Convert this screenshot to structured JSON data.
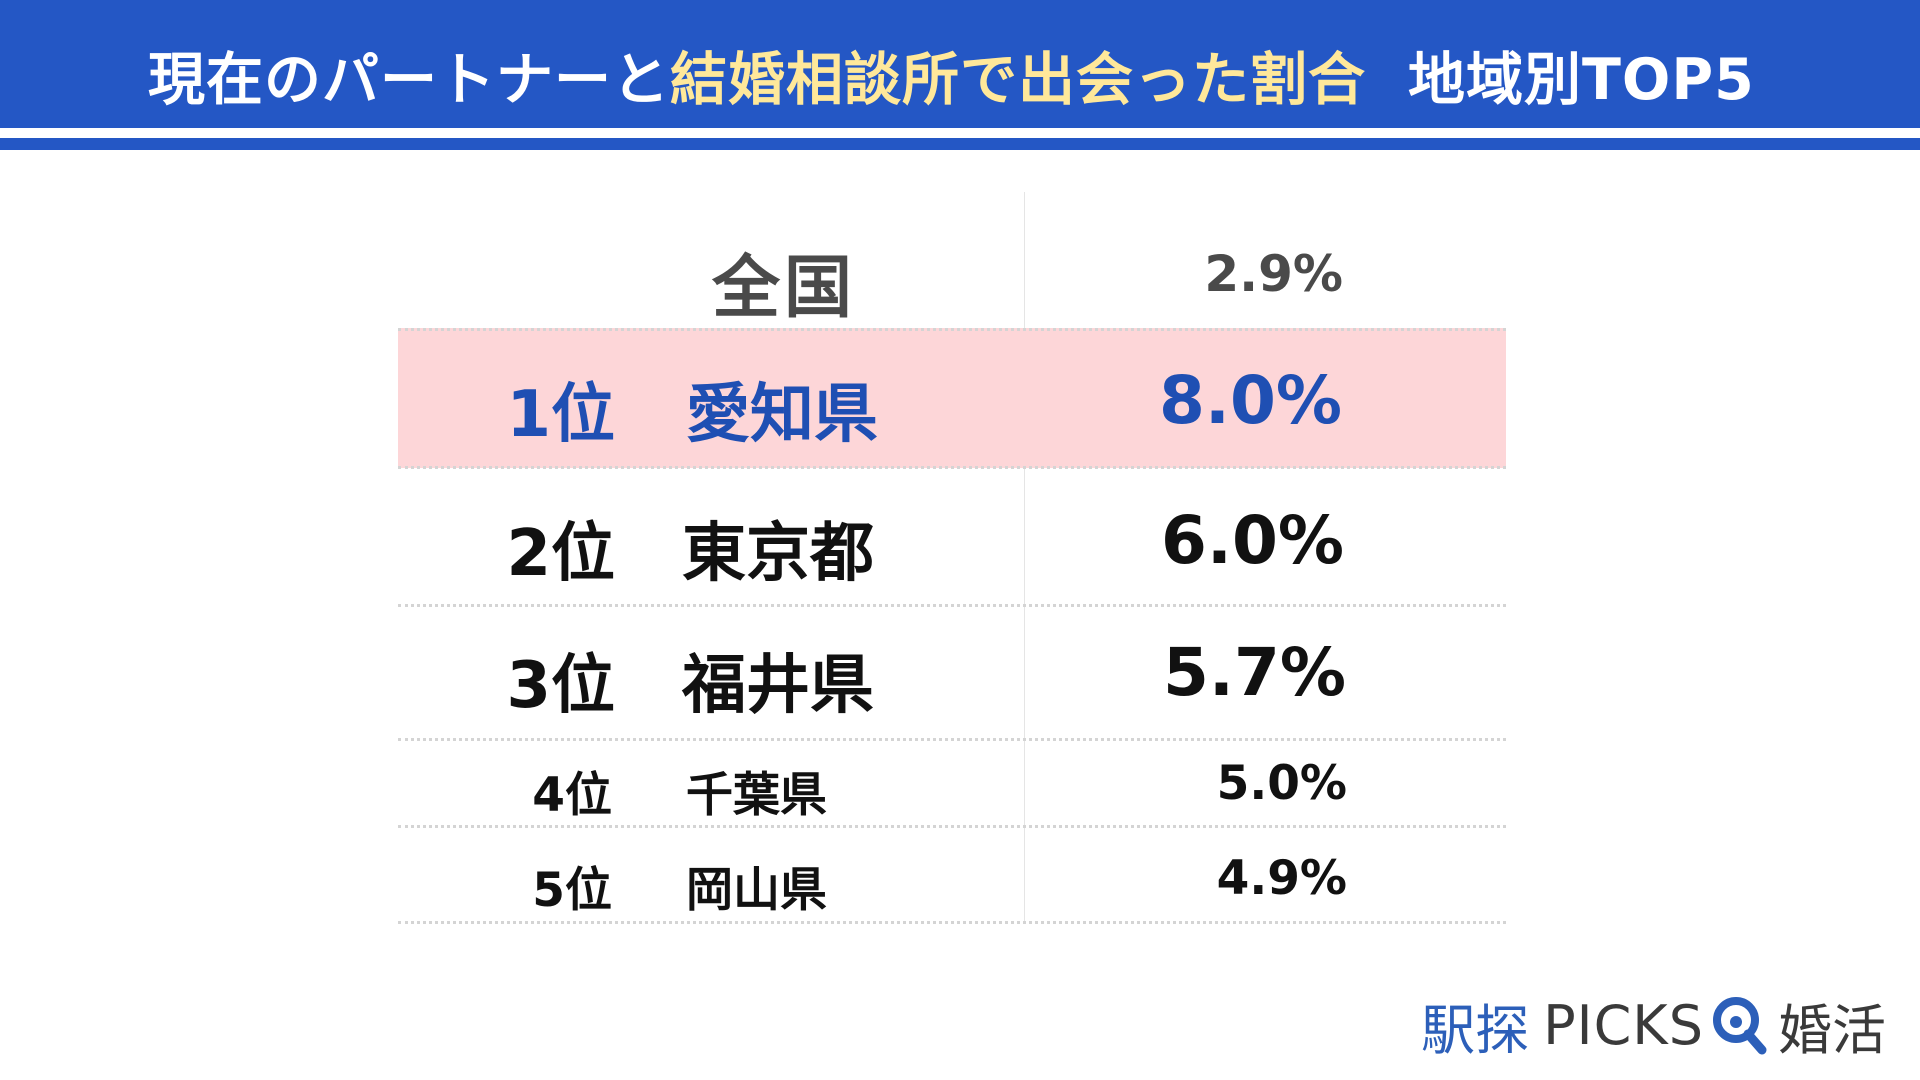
{
  "header": {
    "title_part1": "現在のパートナーと",
    "title_highlight": "結婚相談所で出会った割合",
    "title_part2": "地域別TOP5"
  },
  "colors": {
    "header_blue": "#2457c5",
    "highlight_text": "#ffe89a",
    "first_place_bg": "#fdd6d8",
    "first_place_text": "#1f4fb3"
  },
  "chart_data": {
    "type": "table",
    "national": {
      "label": "全国",
      "value": "2.9%"
    },
    "rows": [
      {
        "rank": "1位",
        "prefecture": "愛知県",
        "value": "8.0%"
      },
      {
        "rank": "2位",
        "prefecture": "東京都",
        "value": "6.0%"
      },
      {
        "rank": "3位",
        "prefecture": "福井県",
        "value": "5.7%"
      },
      {
        "rank": "4位",
        "prefecture": "千葉県",
        "value": "5.0%"
      },
      {
        "rank": "5位",
        "prefecture": "岡山県",
        "value": "4.9%"
      }
    ]
  },
  "footer": {
    "brand_part1": "駅探",
    "brand_part2": "PICKS",
    "brand_icon": "search-magnifier-icon",
    "brand_part3": "婚活"
  }
}
